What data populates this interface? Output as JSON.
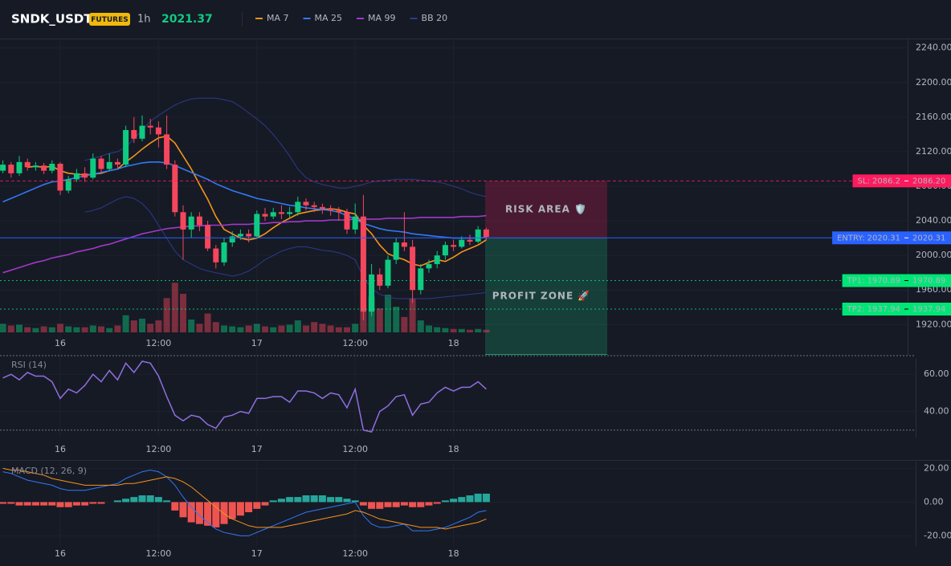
{
  "header": {
    "symbol": "SNDK_USDT",
    "badge": "FUTURES",
    "interval": "1h",
    "price": 2021.37
  },
  "chart_data": [
    {
      "type": "candlestick",
      "categories": [
        null,
        null,
        null,
        null,
        null,
        null,
        null,
        "16",
        null,
        null,
        null,
        null,
        null,
        null,
        null,
        null,
        null,
        null,
        null,
        "12:00",
        null,
        null,
        null,
        null,
        null,
        null,
        null,
        null,
        null,
        null,
        null,
        "17",
        null,
        null,
        null,
        null,
        null,
        null,
        null,
        null,
        null,
        null,
        null,
        "12:00",
        null,
        null,
        null,
        null,
        null,
        null,
        null,
        null,
        null,
        null,
        null,
        "18",
        null,
        null,
        null,
        null
      ],
      "open": [
        2098,
        2105,
        2095,
        2108,
        2102,
        2104,
        2098,
        2106,
        2075,
        2088,
        2095,
        2090,
        2112,
        2100,
        2108,
        2105,
        2145,
        2135,
        2150,
        2148,
        2140,
        2105,
        2050,
        2030,
        2045,
        2035,
        2008,
        1992,
        2015,
        2022,
        2025,
        2022,
        2048,
        2045,
        2050,
        2048,
        2050,
        2062,
        2058,
        2056,
        2054,
        2052,
        2050,
        2030,
        2045,
        1935,
        1978,
        1965,
        1995,
        2015,
        2010,
        1960,
        1985,
        1990,
        2000,
        2012,
        2010,
        2018,
        2016,
        2030
      ],
      "high": [
        2110,
        2108,
        2115,
        2112,
        2108,
        2107,
        2110,
        2108,
        2092,
        2100,
        2102,
        2118,
        2115,
        2118,
        2112,
        2150,
        2160,
        2162,
        2158,
        2155,
        2162,
        2110,
        2058,
        2050,
        2050,
        2040,
        2012,
        2020,
        2028,
        2030,
        2030,
        2052,
        2055,
        2055,
        2058,
        2056,
        2068,
        2066,
        2062,
        2060,
        2058,
        2056,
        2054,
        2060,
        2070,
        1990,
        1985,
        2000,
        2020,
        2050,
        2018,
        1990,
        1995,
        2005,
        2016,
        2018,
        2022,
        2024,
        2034,
        2032
      ],
      "low": [
        2095,
        2090,
        2092,
        2098,
        2098,
        2094,
        2095,
        2070,
        2072,
        2085,
        2085,
        2088,
        2095,
        2098,
        2100,
        2102,
        2130,
        2132,
        2140,
        2125,
        2100,
        2045,
        1995,
        2020,
        2028,
        2005,
        1985,
        1988,
        2010,
        2018,
        2015,
        2020,
        2040,
        2042,
        2042,
        2044,
        2046,
        2052,
        2050,
        2048,
        2046,
        2040,
        2025,
        2025,
        1925,
        1930,
        1960,
        1962,
        1990,
        2005,
        1945,
        1955,
        1980,
        1985,
        1995,
        2005,
        2008,
        2012,
        2014,
        2018
      ],
      "close": [
        2105,
        2095,
        2108,
        2102,
        2104,
        2098,
        2106,
        2075,
        2088,
        2095,
        2090,
        2112,
        2100,
        2108,
        2105,
        2145,
        2135,
        2150,
        2148,
        2140,
        2105,
        2050,
        2030,
        2045,
        2035,
        2008,
        1992,
        2015,
        2022,
        2025,
        2022,
        2048,
        2045,
        2050,
        2048,
        2050,
        2062,
        2058,
        2056,
        2054,
        2052,
        2050,
        2030,
        2045,
        1935,
        1978,
        1965,
        1995,
        2015,
        2010,
        1960,
        1985,
        1990,
        2000,
        2012,
        2010,
        2018,
        2016,
        2030,
        2021.37
      ],
      "volume": [
        10,
        8,
        9,
        6,
        5,
        7,
        6,
        10,
        7,
        6,
        6,
        8,
        7,
        5,
        8,
        20,
        14,
        16,
        10,
        14,
        40,
        58,
        45,
        15,
        10,
        22,
        12,
        8,
        7,
        6,
        8,
        10,
        7,
        6,
        8,
        9,
        14,
        8,
        12,
        10,
        8,
        6,
        6,
        10,
        60,
        42,
        28,
        44,
        30,
        18,
        40,
        14,
        8,
        6,
        5,
        4,
        4,
        3,
        4,
        3
      ],
      "up_color": "#0ecb81",
      "down_color": "#f6465d",
      "series": [
        {
          "name": "MA 7",
          "color": "#f7931a",
          "values": [
            null,
            null,
            null,
            2102,
            2103,
            2102,
            2103,
            2098,
            2095,
            2094,
            2093,
            2094,
            2095,
            2098,
            2100,
            2108,
            2115,
            2123,
            2130,
            2136,
            2138,
            2130,
            2115,
            2100,
            2082,
            2065,
            2045,
            2030,
            2025,
            2020,
            2018,
            2020,
            2025,
            2032,
            2038,
            2043,
            2048,
            2050,
            2052,
            2053,
            2054,
            2053,
            2050,
            2048,
            2035,
            2025,
            2012,
            2002,
            1998,
            1995,
            1990,
            1988,
            1992,
            1995,
            1993,
            1998,
            2004,
            2008,
            2012,
            2018
          ]
        },
        {
          "name": "MA 25",
          "color": "#3179f5",
          "values": [
            2062,
            2066,
            2070,
            2074,
            2078,
            2082,
            2085,
            2086,
            2088,
            2090,
            2092,
            2094,
            2096,
            2098,
            2100,
            2103,
            2105,
            2107,
            2108,
            2108,
            2107,
            2104,
            2100,
            2096,
            2092,
            2088,
            2083,
            2079,
            2075,
            2072,
            2069,
            2066,
            2064,
            2062,
            2060,
            2058,
            2057,
            2055,
            2054,
            2053,
            2052,
            2050,
            2046,
            2042,
            2037,
            2034,
            2031,
            2029,
            2028,
            2027,
            2025,
            2024,
            2023,
            2022,
            2021,
            2020,
            2020,
            2020,
            2020,
            2021
          ]
        },
        {
          "name": "MA 99",
          "color": "#a238c8",
          "values": [
            1980,
            1983,
            1986,
            1989,
            1992,
            1994,
            1997,
            1999,
            2001,
            2004,
            2006,
            2008,
            2011,
            2013,
            2016,
            2019,
            2022,
            2025,
            2027,
            2029,
            2031,
            2032,
            2033,
            2034,
            2034,
            2035,
            2035,
            2035,
            2036,
            2036,
            2036,
            2037,
            2037,
            2038,
            2038,
            2039,
            2039,
            2040,
            2040,
            2040,
            2041,
            2041,
            2041,
            2042,
            2042,
            2042,
            2042,
            2043,
            2043,
            2043,
            2043,
            2044,
            2044,
            2044,
            2044,
            2044,
            2045,
            2045,
            2045,
            2046
          ]
        },
        {
          "name": "BB 20",
          "color": "#2d3a8c",
          "upper": [
            null,
            null,
            null,
            null,
            null,
            null,
            null,
            null,
            null,
            null,
            2110,
            2112,
            2115,
            2118,
            2120,
            2125,
            2135,
            2145,
            2155,
            2162,
            2168,
            2174,
            2178,
            2181,
            2182,
            2182,
            2182,
            2180,
            2178,
            2172,
            2165,
            2158,
            2150,
            2140,
            2128,
            2115,
            2100,
            2090,
            2085,
            2082,
            2080,
            2078,
            2078,
            2080,
            2082,
            2085,
            2086,
            2087,
            2088,
            2088,
            2088,
            2087,
            2086,
            2085,
            2083,
            2080,
            2077,
            2073,
            2070,
            2068
          ],
          "lower": [
            null,
            null,
            null,
            null,
            null,
            null,
            null,
            null,
            null,
            null,
            2050,
            2052,
            2055,
            2060,
            2065,
            2068,
            2066,
            2060,
            2050,
            2035,
            2020,
            2005,
            1995,
            1990,
            1985,
            1982,
            1980,
            1978,
            1976,
            1978,
            1982,
            1988,
            1995,
            2000,
            2005,
            2008,
            2010,
            2010,
            2008,
            2006,
            2005,
            2003,
            2000,
            1995,
            1975,
            1962,
            1955,
            1952,
            1950,
            1950,
            1950,
            1950,
            1950,
            1951,
            1952,
            1953,
            1954,
            1955,
            1956,
            1957
          ]
        }
      ],
      "ylim": [
        1885,
        2249
      ],
      "yticks": [
        {
          "value": 1920,
          "label": "1920.00"
        },
        {
          "value": 1960,
          "label": "1960.00"
        },
        {
          "value": 2000,
          "label": "2000.00"
        },
        {
          "value": 2040,
          "label": "2040.00"
        },
        {
          "value": 2080,
          "label": "2080.00"
        },
        {
          "value": 2120,
          "label": "2120.00"
        },
        {
          "value": 2160,
          "label": "2160.00"
        },
        {
          "value": 2200,
          "label": "2200.00"
        },
        {
          "value": 2240,
          "label": "2240.00"
        }
      ],
      "grid": true,
      "levels": [
        {
          "label": "SL: 2086.2",
          "value": 2086.2,
          "value_label": "2086.20",
          "color": "#ff1a5e",
          "text_color": "#ffffff",
          "style": "dashed"
        },
        {
          "label": "ENTRY: 2020.31",
          "value": 2020.31,
          "value_label": "2020.31",
          "color": "#2962ff",
          "text_color": "#ffffff",
          "style": "solid"
        },
        {
          "label": "TP1: 1970.89",
          "value": 1970.89,
          "value_label": "1970.89",
          "color": "#00e676",
          "text_color": "#000000",
          "style": "dotted"
        },
        {
          "label": "TP2: 1937.94",
          "value": 1937.94,
          "value_label": "1937.94",
          "color": "#00e676",
          "text_color": "#000000",
          "style": "dotted"
        }
      ],
      "zones": [
        {
          "label": "RISK AREA 🛡️",
          "color": "#ff1a5e"
        },
        {
          "label": "PROFIT ZONE 🚀",
          "color": "#1ed58a"
        }
      ]
    },
    {
      "type": "line",
      "title": "RSI (14)",
      "categories": [
        null,
        null,
        null,
        null,
        null,
        null,
        null,
        "16",
        null,
        null,
        null,
        null,
        null,
        null,
        null,
        null,
        null,
        null,
        null,
        "12:00",
        null,
        null,
        null,
        null,
        null,
        null,
        null,
        null,
        null,
        null,
        null,
        "17",
        null,
        null,
        null,
        null,
        null,
        null,
        null,
        null,
        null,
        null,
        null,
        "12:00",
        null,
        null,
        null,
        null,
        null,
        null,
        null,
        null,
        null,
        null,
        null,
        "18",
        null,
        null,
        null,
        null
      ],
      "values": [
        58,
        60,
        57,
        61,
        59,
        59,
        56,
        47,
        52,
        50,
        54,
        60,
        56,
        62,
        57,
        66,
        61,
        67,
        66,
        59,
        48,
        38,
        35,
        38,
        37,
        33,
        31,
        37,
        38,
        40,
        39,
        47,
        47,
        48,
        48,
        45,
        51,
        51,
        50,
        47,
        50,
        49,
        42,
        52,
        30,
        29,
        40,
        43,
        48,
        49,
        38,
        44,
        45,
        50,
        53,
        51,
        53,
        53,
        56,
        52
      ],
      "color": "#8f6fe0",
      "ylim": [
        26,
        70
      ],
      "yticks": [
        {
          "value": 40,
          "label": "40.00"
        },
        {
          "value": 60,
          "label": "60.00"
        }
      ],
      "levels": [
        30,
        70
      ]
    },
    {
      "type": "macd",
      "title": "MACD (12, 26, 9)",
      "categories": [
        null,
        null,
        null,
        null,
        null,
        null,
        null,
        "16",
        null,
        null,
        null,
        null,
        null,
        null,
        null,
        null,
        null,
        null,
        null,
        "12:00",
        null,
        null,
        null,
        null,
        null,
        null,
        null,
        null,
        null,
        null,
        null,
        "17",
        null,
        null,
        null,
        null,
        null,
        null,
        null,
        null,
        null,
        null,
        null,
        "12:00",
        null,
        null,
        null,
        null,
        null,
        null,
        null,
        null,
        null,
        null,
        null,
        "18",
        null,
        null,
        null,
        null
      ],
      "series": [
        {
          "color": "#3179f5",
          "values": [
            18,
            17,
            15,
            13,
            12,
            11,
            10,
            8,
            7,
            7,
            7,
            8,
            9,
            10,
            11,
            14,
            16,
            18,
            19,
            18,
            15,
            10,
            3,
            -3,
            -8,
            -12,
            -16,
            -18,
            -19,
            -20,
            -20,
            -18,
            -16,
            -14,
            -12,
            -10,
            -8,
            -6,
            -5,
            -4,
            -3,
            -2,
            -1,
            0,
            -8,
            -13,
            -15,
            -15,
            -14,
            -13,
            -17,
            -17,
            -17,
            -16,
            -15,
            -13,
            -11,
            -9,
            -6,
            -5
          ]
        },
        {
          "color": "#f7931a",
          "values": [
            20,
            19,
            19,
            18,
            17,
            16,
            14,
            13,
            12,
            11,
            10,
            10,
            10,
            10,
            10,
            11,
            11,
            12,
            13,
            14,
            15,
            14,
            12,
            9,
            5,
            1,
            -3,
            -7,
            -10,
            -12,
            -14,
            -15,
            -15,
            -15,
            -15,
            -14,
            -13,
            -12,
            -11,
            -10,
            -9,
            -8,
            -7,
            -5,
            -6,
            -8,
            -10,
            -11,
            -12,
            -13,
            -14,
            -15,
            -15,
            -15,
            -16,
            -15,
            -14,
            -13,
            -12,
            -10
          ]
        }
      ],
      "histogram": [
        -1,
        -1,
        -2,
        -2,
        -2,
        -2,
        -2,
        -3,
        -3,
        -2,
        -2,
        -1,
        -1,
        0,
        1,
        2,
        3,
        4,
        4,
        3,
        1,
        -5,
        -9,
        -12,
        -13,
        -14,
        -15,
        -13,
        -10,
        -8,
        -6,
        -4,
        -2,
        1,
        2,
        3,
        3,
        4,
        4,
        4,
        3,
        3,
        2,
        1,
        -2,
        -4,
        -4,
        -3,
        -3,
        -2,
        -3,
        -3,
        -2,
        -1,
        1,
        2,
        3,
        4,
        5,
        5
      ],
      "up_color": "#26a69a",
      "down_color": "#ef5350",
      "ylim": [
        -26,
        24
      ],
      "yticks": [
        {
          "value": -20,
          "label": "-20.00"
        },
        {
          "value": 0,
          "label": "0.00"
        },
        {
          "value": 20,
          "label": "20.00"
        }
      ]
    }
  ]
}
